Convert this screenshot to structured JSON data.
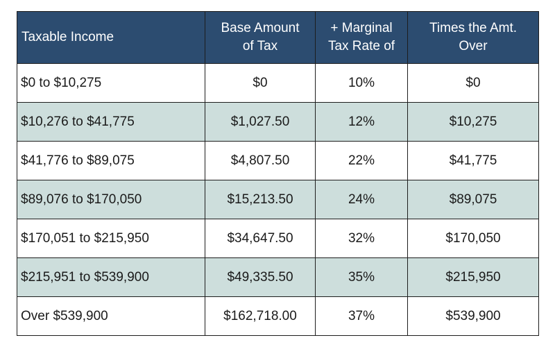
{
  "table": {
    "headers": [
      [
        "Taxable Income"
      ],
      [
        "Base Amount",
        "of Tax"
      ],
      [
        "+ Marginal",
        "Tax Rate of"
      ],
      [
        "Times the Amt.",
        "Over"
      ]
    ],
    "rows": [
      [
        "$0 to $10,275",
        "$0",
        "10%",
        "$0"
      ],
      [
        "$10,276 to $41,775",
        "$1,027.50",
        "12%",
        "$10,275"
      ],
      [
        "$41,776 to $89,075",
        "$4,807.50",
        "22%",
        "$41,775"
      ],
      [
        "$89,076 to $170,050",
        "$15,213.50",
        "24%",
        "$89,075"
      ],
      [
        "$170,051 to $215,950",
        "$34,647.50",
        "32%",
        "$170,050"
      ],
      [
        "$215,951 to $539,900",
        "$49,335.50",
        "35%",
        "$215,950"
      ],
      [
        "Over $539,900",
        "$162,718.00",
        "37%",
        "$539,900"
      ]
    ],
    "colors": {
      "header_background": "#2c4c70",
      "header_text": "#ffffff",
      "shaded_row": "#cddedc",
      "border": "#1d1d1d"
    }
  }
}
